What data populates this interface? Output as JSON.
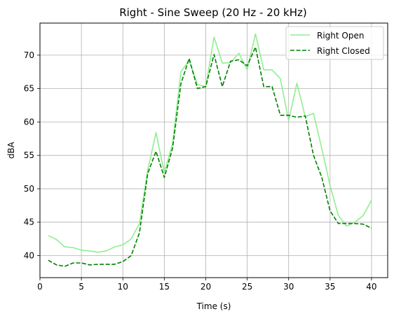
{
  "chart_data": {
    "type": "line",
    "title": "Right - Sine Sweep (20 Hz - 20 kHz)",
    "xlabel": "Time (s)",
    "ylabel": "dBA",
    "xlim": [
      0,
      41.95
    ],
    "ylim": [
      36.7,
      74.8
    ],
    "xticks": [
      0,
      5,
      10,
      15,
      20,
      25,
      30,
      35,
      40
    ],
    "yticks": [
      40,
      45,
      50,
      55,
      60,
      65,
      70
    ],
    "grid": true,
    "legend_position": "top-right",
    "x": [
      1,
      2,
      3,
      4,
      5,
      6,
      7,
      8,
      9,
      10,
      11,
      12,
      13,
      14,
      15,
      16,
      17,
      18,
      19,
      20,
      21,
      22,
      23,
      24,
      25,
      26,
      27,
      28,
      29,
      30,
      31,
      32,
      33,
      34,
      35,
      36,
      37,
      38,
      39,
      40
    ],
    "series": [
      {
        "name": "Right Open",
        "color": "#90ee90",
        "style": "solid",
        "values": [
          43.0,
          42.4,
          41.3,
          41.2,
          40.8,
          40.7,
          40.5,
          40.7,
          41.3,
          41.6,
          42.5,
          44.8,
          52.8,
          58.4,
          52.4,
          56.8,
          67.5,
          69.2,
          65.6,
          65.3,
          72.7,
          68.8,
          68.9,
          70.3,
          67.8,
          73.2,
          67.8,
          67.8,
          66.5,
          60.2,
          65.8,
          60.8,
          61.3,
          56.0,
          50.5,
          46.0,
          44.4,
          45.0,
          46.0,
          48.3
        ]
      },
      {
        "name": "Right Closed",
        "color": "#008000",
        "style": "dashed",
        "values": [
          39.3,
          38.6,
          38.4,
          38.9,
          38.9,
          38.6,
          38.7,
          38.7,
          38.7,
          39.1,
          40.0,
          43.4,
          52.3,
          55.6,
          51.7,
          56.1,
          65.7,
          69.5,
          65.0,
          65.3,
          70.1,
          65.3,
          69.1,
          69.3,
          68.4,
          71.2,
          65.3,
          65.3,
          61.0,
          61.0,
          60.7,
          60.9,
          55.0,
          51.7,
          46.7,
          44.8,
          44.8,
          44.8,
          44.7,
          44.1
        ]
      }
    ]
  }
}
